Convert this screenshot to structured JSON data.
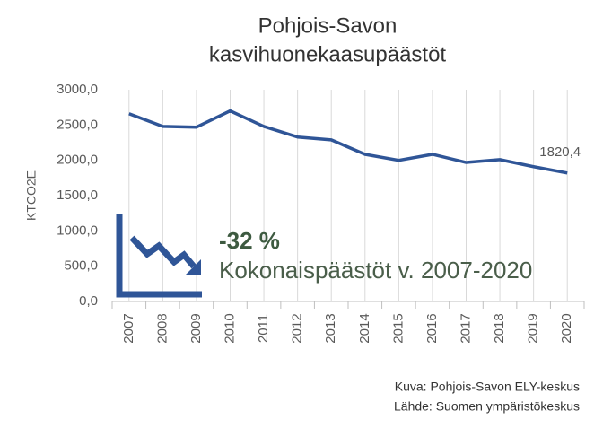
{
  "chart_data": {
    "type": "line",
    "title": [
      "Pohjois-Savon",
      "kasvihuonekaasupäästöt"
    ],
    "y_label": "KTCO2E",
    "categories": [
      "2007",
      "2008",
      "2009",
      "2010",
      "2011",
      "2012",
      "2013",
      "2014",
      "2015",
      "2016",
      "2017",
      "2018",
      "2019",
      "2020"
    ],
    "values": [
      2660,
      2480,
      2470,
      2700,
      2480,
      2330,
      2290,
      2085,
      2000,
      2085,
      1970,
      2010,
      1910,
      1820.4
    ],
    "value_labels": [
      null,
      null,
      null,
      null,
      null,
      null,
      null,
      null,
      null,
      null,
      null,
      null,
      null,
      "1820,4"
    ],
    "color": "#2f5597",
    "ylim": [
      0,
      3000
    ],
    "yticks": [
      {
        "value": 0,
        "label": "0,0"
      },
      {
        "value": 500,
        "label": "500,0"
      },
      {
        "value": 1000,
        "label": "1000,0"
      },
      {
        "value": 1500,
        "label": "1500,0"
      },
      {
        "value": 2000,
        "label": "2000,0"
      },
      {
        "value": 2500,
        "label": "2500,0"
      },
      {
        "value": 3000,
        "label": "3000,0"
      }
    ],
    "grid": true,
    "annotation": {
      "value": "-32 %",
      "text": "Kokonaispäästöt v. 2007-2020"
    },
    "credits": [
      "Kuva: Pohjois-Savon ELY-keskus",
      "Lähde: Suomen ympäristökeskus"
    ]
  }
}
